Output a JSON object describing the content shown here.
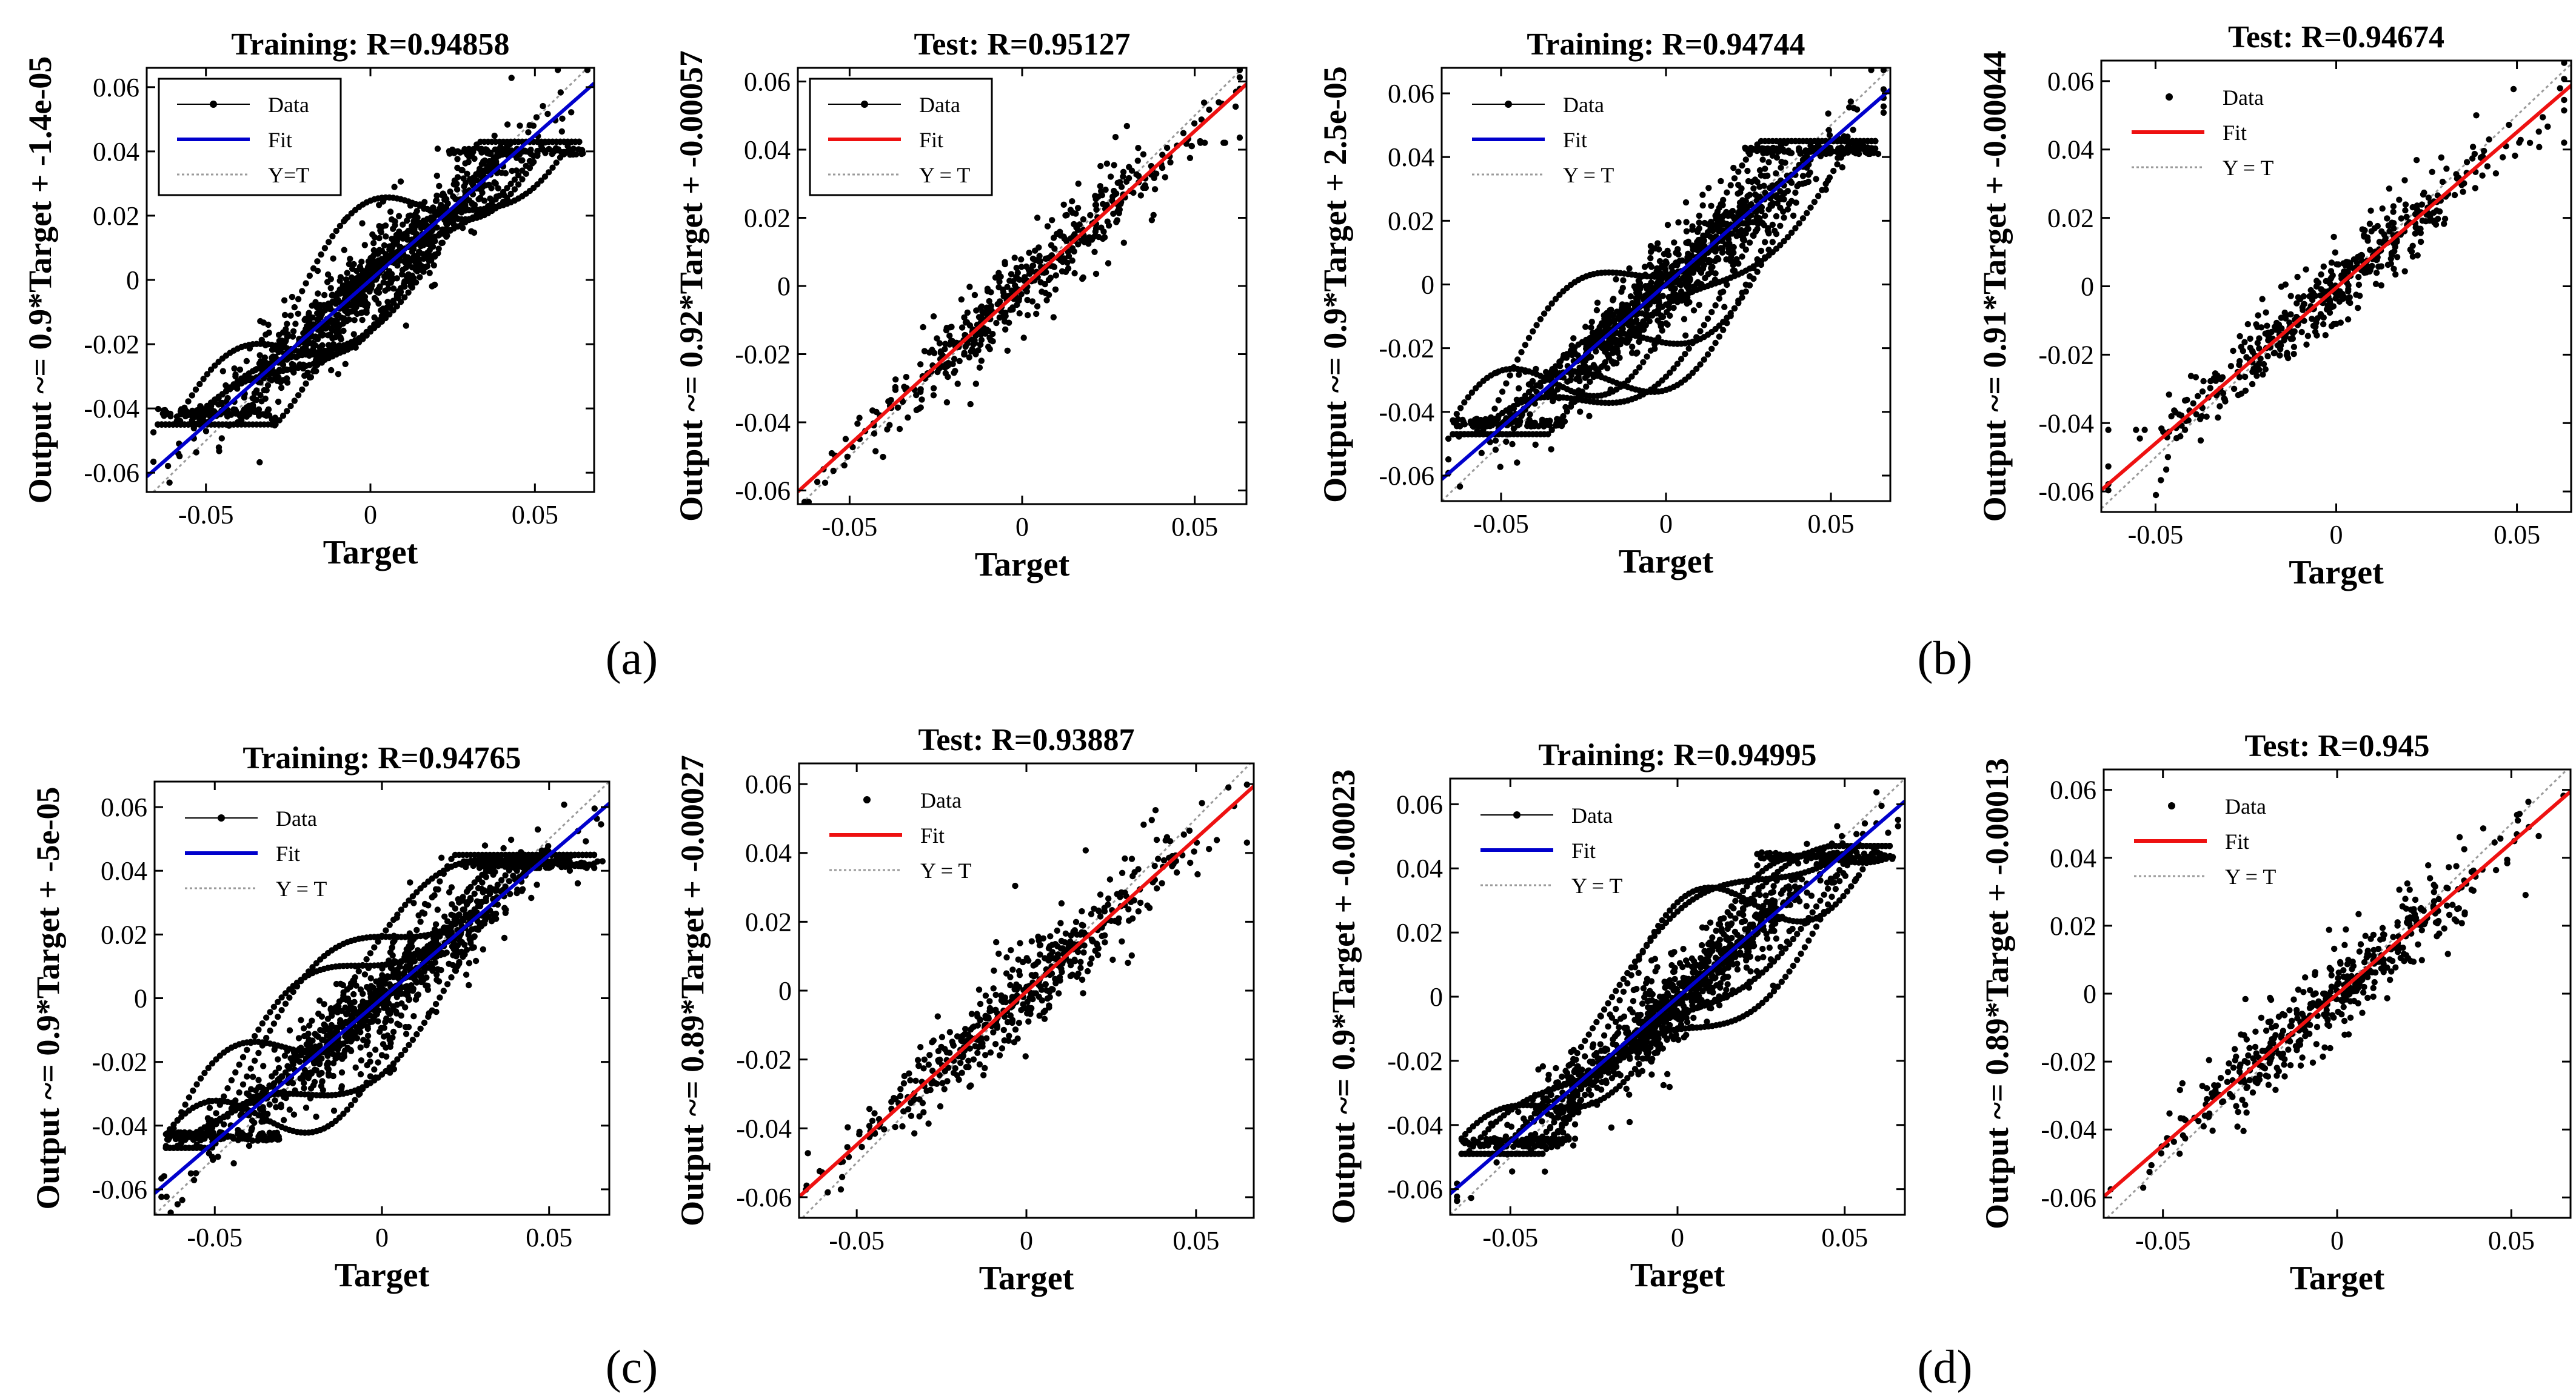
{
  "figure": {
    "subfigure_labels": [
      "(a)",
      "(b)",
      "(c)",
      "(d)"
    ]
  },
  "colors": {
    "data": "#000000",
    "fit_training": "#0000cc",
    "fit_test": "#ee1111",
    "identity": "#9a9a9a",
    "axis": "#000000"
  },
  "chart_data": [
    {
      "type": "scatter",
      "subfigure": "(a)",
      "set": "Training",
      "title": "Training: R=0.94858",
      "xlabel": "Target",
      "ylabel": "Output ~= 0.9*Target + -1.4e-05",
      "slope": 0.9,
      "intercept": -1.4e-05,
      "xlim": [
        -0.068,
        0.068
      ],
      "ylim": [
        -0.066,
        0.066
      ],
      "xticks": [
        -0.05,
        0,
        0.05
      ],
      "xtick_labels": [
        "-0.05",
        "0",
        "0.05"
      ],
      "yticks": [
        -0.06,
        -0.04,
        -0.02,
        0,
        0.02,
        0.04,
        0.06
      ],
      "ytick_labels": [
        "-0.06",
        "-0.04",
        "-0.02",
        "0",
        "0.02",
        "0.04",
        "0.06"
      ],
      "legend": {
        "position": "top-left",
        "entries": [
          "Data",
          "Fit",
          "Y=T"
        ],
        "boxed": true
      },
      "points": {
        "count": 1500,
        "scatter": 0.0095,
        "saturation": 0.041,
        "seed": 11,
        "loops": 6
      }
    },
    {
      "type": "scatter",
      "subfigure": "(a)",
      "set": "Test",
      "title": "Test: R=0.95127",
      "xlabel": "Target",
      "ylabel": "Output ~= 0.92*Target + -0.00057",
      "slope": 0.92,
      "intercept": -0.00057,
      "xlim": [
        -0.065,
        0.065
      ],
      "ylim": [
        -0.064,
        0.064
      ],
      "xticks": [
        -0.05,
        0,
        0.05
      ],
      "xtick_labels": [
        "-0.05",
        "0",
        "0.05"
      ],
      "yticks": [
        -0.06,
        -0.04,
        -0.02,
        0,
        0.02,
        0.04,
        0.06
      ],
      "ytick_labels": [
        "-0.06",
        "-0.04",
        "-0.02",
        "0",
        "0.02",
        "0.04",
        "0.06"
      ],
      "legend": {
        "position": "top-left",
        "entries": [
          "Data",
          "Fit",
          "Y = T"
        ],
        "boxed": true
      },
      "points": {
        "count": 480,
        "scatter": 0.008,
        "saturation": 0.042,
        "seed": 23,
        "loops": 0
      }
    },
    {
      "type": "scatter",
      "subfigure": "(b)",
      "set": "Training",
      "title": "Training: R=0.94744",
      "xlabel": "Target",
      "ylabel": "Output ~= 0.9*Target + 2.5e-05",
      "slope": 0.9,
      "intercept": 2.5e-05,
      "xlim": [
        -0.068,
        0.068
      ],
      "ylim": [
        -0.068,
        0.068
      ],
      "xticks": [
        -0.05,
        0,
        0.05
      ],
      "xtick_labels": [
        "-0.05",
        "0",
        "0.05"
      ],
      "yticks": [
        -0.06,
        -0.04,
        -0.02,
        0,
        0.02,
        0.04,
        0.06
      ],
      "ytick_labels": [
        "-0.06",
        "-0.04",
        "-0.02",
        "0",
        "0.02",
        "0.04",
        "0.06"
      ],
      "legend": {
        "position": "top-left",
        "entries": [
          "Data",
          "Fit",
          "Y = T"
        ],
        "boxed": false
      },
      "points": {
        "count": 1500,
        "scatter": 0.0095,
        "saturation": 0.043,
        "seed": 37,
        "loops": 6
      }
    },
    {
      "type": "scatter",
      "subfigure": "(b)",
      "set": "Test",
      "title": "Test: R=0.94674",
      "xlabel": "Target",
      "ylabel": "Output ~= 0.91*Target + -0.00044",
      "slope": 0.91,
      "intercept": -0.00044,
      "xlim": [
        -0.065,
        0.065
      ],
      "ylim": [
        -0.066,
        0.066
      ],
      "xticks": [
        -0.05,
        0,
        0.05
      ],
      "xtick_labels": [
        "-0.05",
        "0",
        "0.05"
      ],
      "yticks": [
        -0.06,
        -0.04,
        -0.02,
        0,
        0.02,
        0.04,
        0.06
      ],
      "ytick_labels": [
        "-0.06",
        "-0.04",
        "-0.02",
        "0",
        "0.02",
        "0.04",
        "0.06"
      ],
      "legend": {
        "position": "top-left",
        "entries": [
          "Data",
          "Fit",
          "Y = T"
        ],
        "boxed": false
      },
      "points": {
        "count": 480,
        "scatter": 0.008,
        "saturation": 0.042,
        "seed": 41,
        "loops": 0
      }
    },
    {
      "type": "scatter",
      "subfigure": "(c)",
      "set": "Training",
      "title": "Training: R=0.94765",
      "xlabel": "Target",
      "ylabel": "Output ~= 0.9*Target + -5e-05",
      "slope": 0.9,
      "intercept": -5e-05,
      "xlim": [
        -0.068,
        0.068
      ],
      "ylim": [
        -0.068,
        0.068
      ],
      "xticks": [
        -0.05,
        0,
        0.05
      ],
      "xtick_labels": [
        "-0.05",
        "0",
        "0.05"
      ],
      "yticks": [
        -0.06,
        -0.04,
        -0.02,
        0,
        0.02,
        0.04,
        0.06
      ],
      "ytick_labels": [
        "-0.06",
        "-0.04",
        "-0.02",
        "0",
        "0.02",
        "0.04",
        "0.06"
      ],
      "legend": {
        "position": "top-left",
        "entries": [
          "Data",
          "Fit",
          "Y = T"
        ],
        "boxed": false
      },
      "points": {
        "count": 1500,
        "scatter": 0.0095,
        "saturation": 0.043,
        "seed": 53,
        "loops": 6
      }
    },
    {
      "type": "scatter",
      "subfigure": "(c)",
      "set": "Test",
      "title": "Test: R=0.93887",
      "xlabel": "Target",
      "ylabel": "Output ~= 0.89*Target + -0.00027",
      "slope": 0.89,
      "intercept": -0.00027,
      "xlim": [
        -0.067,
        0.067
      ],
      "ylim": [
        -0.066,
        0.066
      ],
      "xticks": [
        -0.05,
        0,
        0.05
      ],
      "xtick_labels": [
        "-0.05",
        "0",
        "0.05"
      ],
      "yticks": [
        -0.06,
        -0.04,
        -0.02,
        0,
        0.02,
        0.04,
        0.06
      ],
      "ytick_labels": [
        "-0.06",
        "-0.04",
        "-0.02",
        "0",
        "0.02",
        "0.04",
        "0.06"
      ],
      "legend": {
        "position": "top-left",
        "entries": [
          "Data",
          "Fit",
          "Y = T"
        ],
        "boxed": false
      },
      "points": {
        "count": 480,
        "scatter": 0.0085,
        "saturation": 0.043,
        "seed": 67,
        "loops": 0
      }
    },
    {
      "type": "scatter",
      "subfigure": "(d)",
      "set": "Training",
      "title": "Training: R=0.94995",
      "xlabel": "Target",
      "ylabel": "Output ~= 0.9*Target + -0.00023",
      "slope": 0.9,
      "intercept": -0.00023,
      "xlim": [
        -0.068,
        0.068
      ],
      "ylim": [
        -0.068,
        0.068
      ],
      "xticks": [
        -0.05,
        0,
        0.05
      ],
      "xtick_labels": [
        "-0.05",
        "0",
        "0.05"
      ],
      "yticks": [
        -0.06,
        -0.04,
        -0.02,
        0,
        0.02,
        0.04,
        0.06
      ],
      "ytick_labels": [
        "-0.06",
        "-0.04",
        "-0.02",
        "0",
        "0.02",
        "0.04",
        "0.06"
      ],
      "legend": {
        "position": "top-left",
        "entries": [
          "Data",
          "Fit",
          "Y = T"
        ],
        "boxed": false
      },
      "points": {
        "count": 1500,
        "scatter": 0.0095,
        "saturation": 0.045,
        "seed": 79,
        "loops": 6
      }
    },
    {
      "type": "scatter",
      "subfigure": "(d)",
      "set": "Test",
      "title": "Test: R=0.945",
      "xlabel": "Target",
      "ylabel": "Output ~= 0.89*Target + -0.00013",
      "slope": 0.89,
      "intercept": -0.00013,
      "xlim": [
        -0.067,
        0.067
      ],
      "ylim": [
        -0.066,
        0.066
      ],
      "xticks": [
        -0.05,
        0,
        0.05
      ],
      "xtick_labels": [
        "-0.05",
        "0",
        "0.05"
      ],
      "yticks": [
        -0.06,
        -0.04,
        -0.02,
        0,
        0.02,
        0.04,
        0.06
      ],
      "ytick_labels": [
        "-0.06",
        "-0.04",
        "-0.02",
        "0",
        "0.02",
        "0.04",
        "0.06"
      ],
      "legend": {
        "position": "top-left",
        "entries": [
          "Data",
          "Fit",
          "Y = T"
        ],
        "boxed": false
      },
      "points": {
        "count": 480,
        "scatter": 0.0085,
        "saturation": 0.045,
        "seed": 83,
        "loops": 0
      }
    }
  ]
}
